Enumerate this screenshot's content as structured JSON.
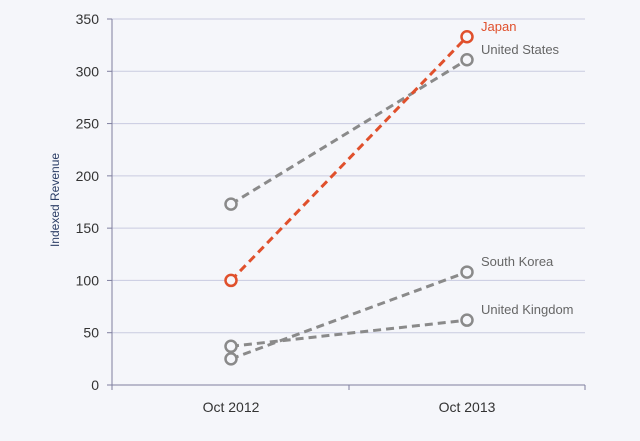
{
  "chart_data": {
    "type": "line",
    "title": "",
    "xlabel": "",
    "ylabel": "Indexed Revenue",
    "categories": [
      "Oct 2012",
      "Oct 2013"
    ],
    "ylim": [
      0,
      350
    ],
    "yticks": [
      0,
      50,
      100,
      150,
      200,
      250,
      300,
      350
    ],
    "grid": true,
    "legend": "inline-right",
    "series": [
      {
        "name": "Japan",
        "values": [
          100,
          333
        ],
        "color": "#e0502c",
        "label_color": "#e0502c"
      },
      {
        "name": "United States",
        "values": [
          173,
          311
        ],
        "color": "#8a8a8a",
        "label_color": "#666666"
      },
      {
        "name": "South Korea",
        "values": [
          25,
          108
        ],
        "color": "#8a8a8a",
        "label_color": "#666666"
      },
      {
        "name": "United Kingdom",
        "values": [
          37,
          62
        ],
        "color": "#8a8a8a",
        "label_color": "#666666"
      }
    ],
    "colors": {
      "background": "#f5f6fa",
      "gridline": "#c9cbe0",
      "axis": "#7f7f9f",
      "highlight": "#e0502c",
      "muted": "#8a8a8a"
    }
  }
}
